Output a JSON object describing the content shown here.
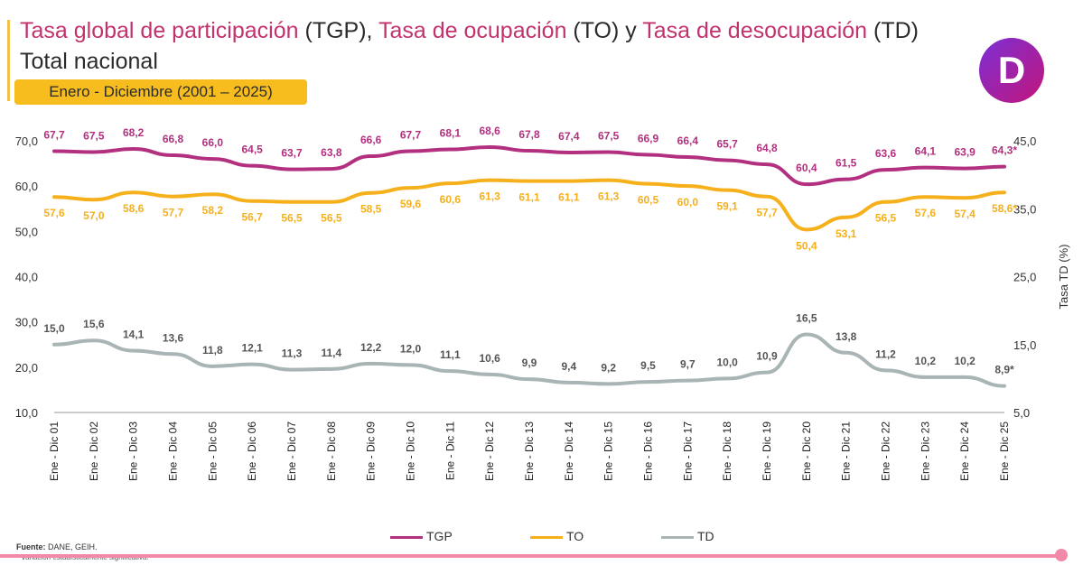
{
  "header": {
    "title_part1": "Tasa global de participación",
    "title_part2": " (TGP), ",
    "title_part3": "Tasa de ocupación",
    "title_part4": " (TO) y ",
    "title_part5": "Tasa de desocupación",
    "title_part6": " (TD)",
    "subtitle": "Total nacional",
    "period": "Enero - Diciembre (2001 – 2025)"
  },
  "logo": {
    "letter": "D"
  },
  "colors": {
    "tgp": "#b2307f",
    "to": "#f5b01c",
    "td": "#a9b4b5",
    "title_accent": "#c2336e"
  },
  "chart_data": {
    "type": "line",
    "categories": [
      "Ene - Dic 01",
      "Ene - Dic 02",
      "Ene - Dic 03",
      "Ene - Dic 04",
      "Ene - Dic 05",
      "Ene - Dic 06",
      "Ene - Dic 07",
      "Ene - Dic 08",
      "Ene - Dic 09",
      "Ene - Dic 10",
      "Ene - Dic 11",
      "Ene - Dic 12",
      "Ene - Dic 13",
      "Ene - Dic 14",
      "Ene - Dic 15",
      "Ene - Dic 16",
      "Ene - Dic 17",
      "Ene - Dic 18",
      "Ene - Dic 19",
      "Ene - Dic 20",
      "Ene - Dic 21",
      "Ene - Dic 22",
      "Ene - Dic 23",
      "Ene - Dic 24",
      "Ene - Dic 25"
    ],
    "series": [
      {
        "name": "TGP",
        "axis": "left",
        "values": [
          67.7,
          67.5,
          68.2,
          66.8,
          66.0,
          64.5,
          63.7,
          63.8,
          66.6,
          67.7,
          68.1,
          68.6,
          67.8,
          67.4,
          67.5,
          66.9,
          66.4,
          65.7,
          64.8,
          60.4,
          61.5,
          63.6,
          64.1,
          63.9,
          64.3
        ],
        "labels": [
          "67,7",
          "67,5",
          "68,2",
          "66,8",
          "66,0",
          "64,5",
          "63,7",
          "63,8",
          "66,6",
          "67,7",
          "68,1",
          "68,6",
          "67,8",
          "67,4",
          "67,5",
          "66,9",
          "66,4",
          "65,7",
          "64,8",
          "60,4",
          "61,5",
          "63,6",
          "64,1",
          "63,9",
          "64,3*"
        ]
      },
      {
        "name": "TO",
        "axis": "left",
        "values": [
          57.6,
          57.0,
          58.6,
          57.7,
          58.2,
          56.7,
          56.5,
          56.5,
          58.5,
          59.6,
          60.6,
          61.3,
          61.1,
          61.1,
          61.3,
          60.5,
          60.0,
          59.1,
          57.7,
          50.4,
          53.1,
          56.5,
          57.6,
          57.4,
          58.6
        ],
        "labels": [
          "57,6",
          "57,0",
          "58,6",
          "57,7",
          "58,2",
          "56,7",
          "56,5",
          "56,5",
          "58,5",
          "59,6",
          "60,6",
          "61,3",
          "61,1",
          "61,1",
          "61,3",
          "60,5",
          "60,0",
          "59,1",
          "57,7",
          "50,4",
          "53,1",
          "56,5",
          "57,6",
          "57,4",
          "58,6*"
        ]
      },
      {
        "name": "TD",
        "axis": "right",
        "values": [
          15.0,
          15.6,
          14.1,
          13.6,
          11.8,
          12.1,
          11.3,
          11.4,
          12.2,
          12.0,
          11.1,
          10.6,
          9.9,
          9.4,
          9.2,
          9.5,
          9.7,
          10.0,
          10.9,
          16.5,
          13.8,
          11.2,
          10.2,
          10.2,
          8.9
        ],
        "labels": [
          "15,0",
          "15,6",
          "14,1",
          "13,6",
          "11,8",
          "12,1",
          "11,3",
          "11,4",
          "12,2",
          "12,0",
          "11,1",
          "10,6",
          "9,9",
          "9,4",
          "9,2",
          "9,5",
          "9,7",
          "10,0",
          "10,9",
          "16,5",
          "13,8",
          "11,2",
          "10,2",
          "10,2",
          "8,9*"
        ]
      }
    ],
    "left_axis": {
      "range": [
        10,
        70
      ],
      "ticks": [
        "10,0",
        "20,0",
        "30,0",
        "40,0",
        "50,0",
        "60,0",
        "70,0"
      ]
    },
    "right_axis": {
      "label": "Tasa TD (%)",
      "range": [
        5,
        45
      ],
      "ticks": [
        "5,0",
        "15,0",
        "25,0",
        "35,0",
        "45,0"
      ]
    },
    "legend": {
      "position": "bottom",
      "items": [
        "TGP",
        "TO",
        "TD"
      ]
    }
  },
  "footer": {
    "source_label": "Fuente:",
    "source_text": " DANE, GEIH.",
    "note": "* Variación estadísticamente significativa."
  }
}
